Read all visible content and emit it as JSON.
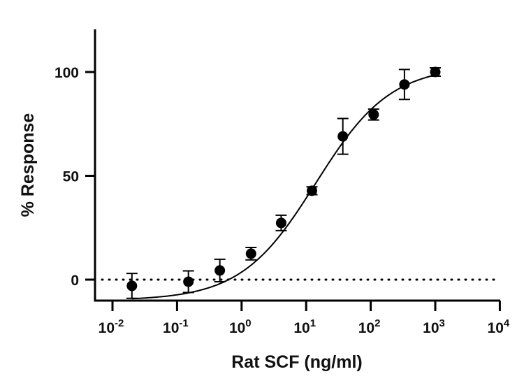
{
  "chart_data": {
    "type": "scatter",
    "title": "",
    "xlabel": "Rat SCF (ng/ml)",
    "ylabel": "% Response",
    "xscale": "log",
    "xlim": [
      0.01,
      10000
    ],
    "ylim": [
      -10,
      122
    ],
    "x_ticks": [
      {
        "value": 0.01,
        "base": "10",
        "exp": "-2"
      },
      {
        "value": 0.1,
        "base": "10",
        "exp": "-1"
      },
      {
        "value": 1,
        "base": "10",
        "exp": "0"
      },
      {
        "value": 10,
        "base": "10",
        "exp": "1"
      },
      {
        "value": 100,
        "base": "10",
        "exp": "2"
      },
      {
        "value": 1000,
        "base": "10",
        "exp": "3"
      },
      {
        "value": 10000,
        "base": "10",
        "exp": "4"
      }
    ],
    "y_ticks": [
      {
        "value": 0,
        "label": "0"
      },
      {
        "value": 50,
        "label": "50"
      },
      {
        "value": 100,
        "label": "100"
      }
    ],
    "reference_line": {
      "y": 0,
      "style": "dotted"
    },
    "series": [
      {
        "name": "Rat SCF",
        "marker": "filled-circle",
        "points": [
          {
            "x": 0.02,
            "y": -3.0,
            "err": 6.0
          },
          {
            "x": 0.15,
            "y": -1.0,
            "err": 5.2
          },
          {
            "x": 0.46,
            "y": 4.4,
            "err": 5.4
          },
          {
            "x": 1.4,
            "y": 12.5,
            "err": 3.0
          },
          {
            "x": 4.1,
            "y": 27.3,
            "err": 3.7
          },
          {
            "x": 12.3,
            "y": 42.8,
            "err": 1.9
          },
          {
            "x": 37,
            "y": 69.0,
            "err": 8.6
          },
          {
            "x": 111,
            "y": 79.5,
            "err": 2.6
          },
          {
            "x": 333,
            "y": 94.0,
            "err": 7.2
          },
          {
            "x": 1000,
            "y": 100.0,
            "err": 2.0
          }
        ],
        "fit": {
          "model": "4PL",
          "bottom": -10,
          "top": 103,
          "logEC50": 1.15,
          "hill": 0.75,
          "x_range": [
            0.02,
            1000
          ]
        }
      }
    ],
    "grid": false,
    "legend": "none"
  }
}
